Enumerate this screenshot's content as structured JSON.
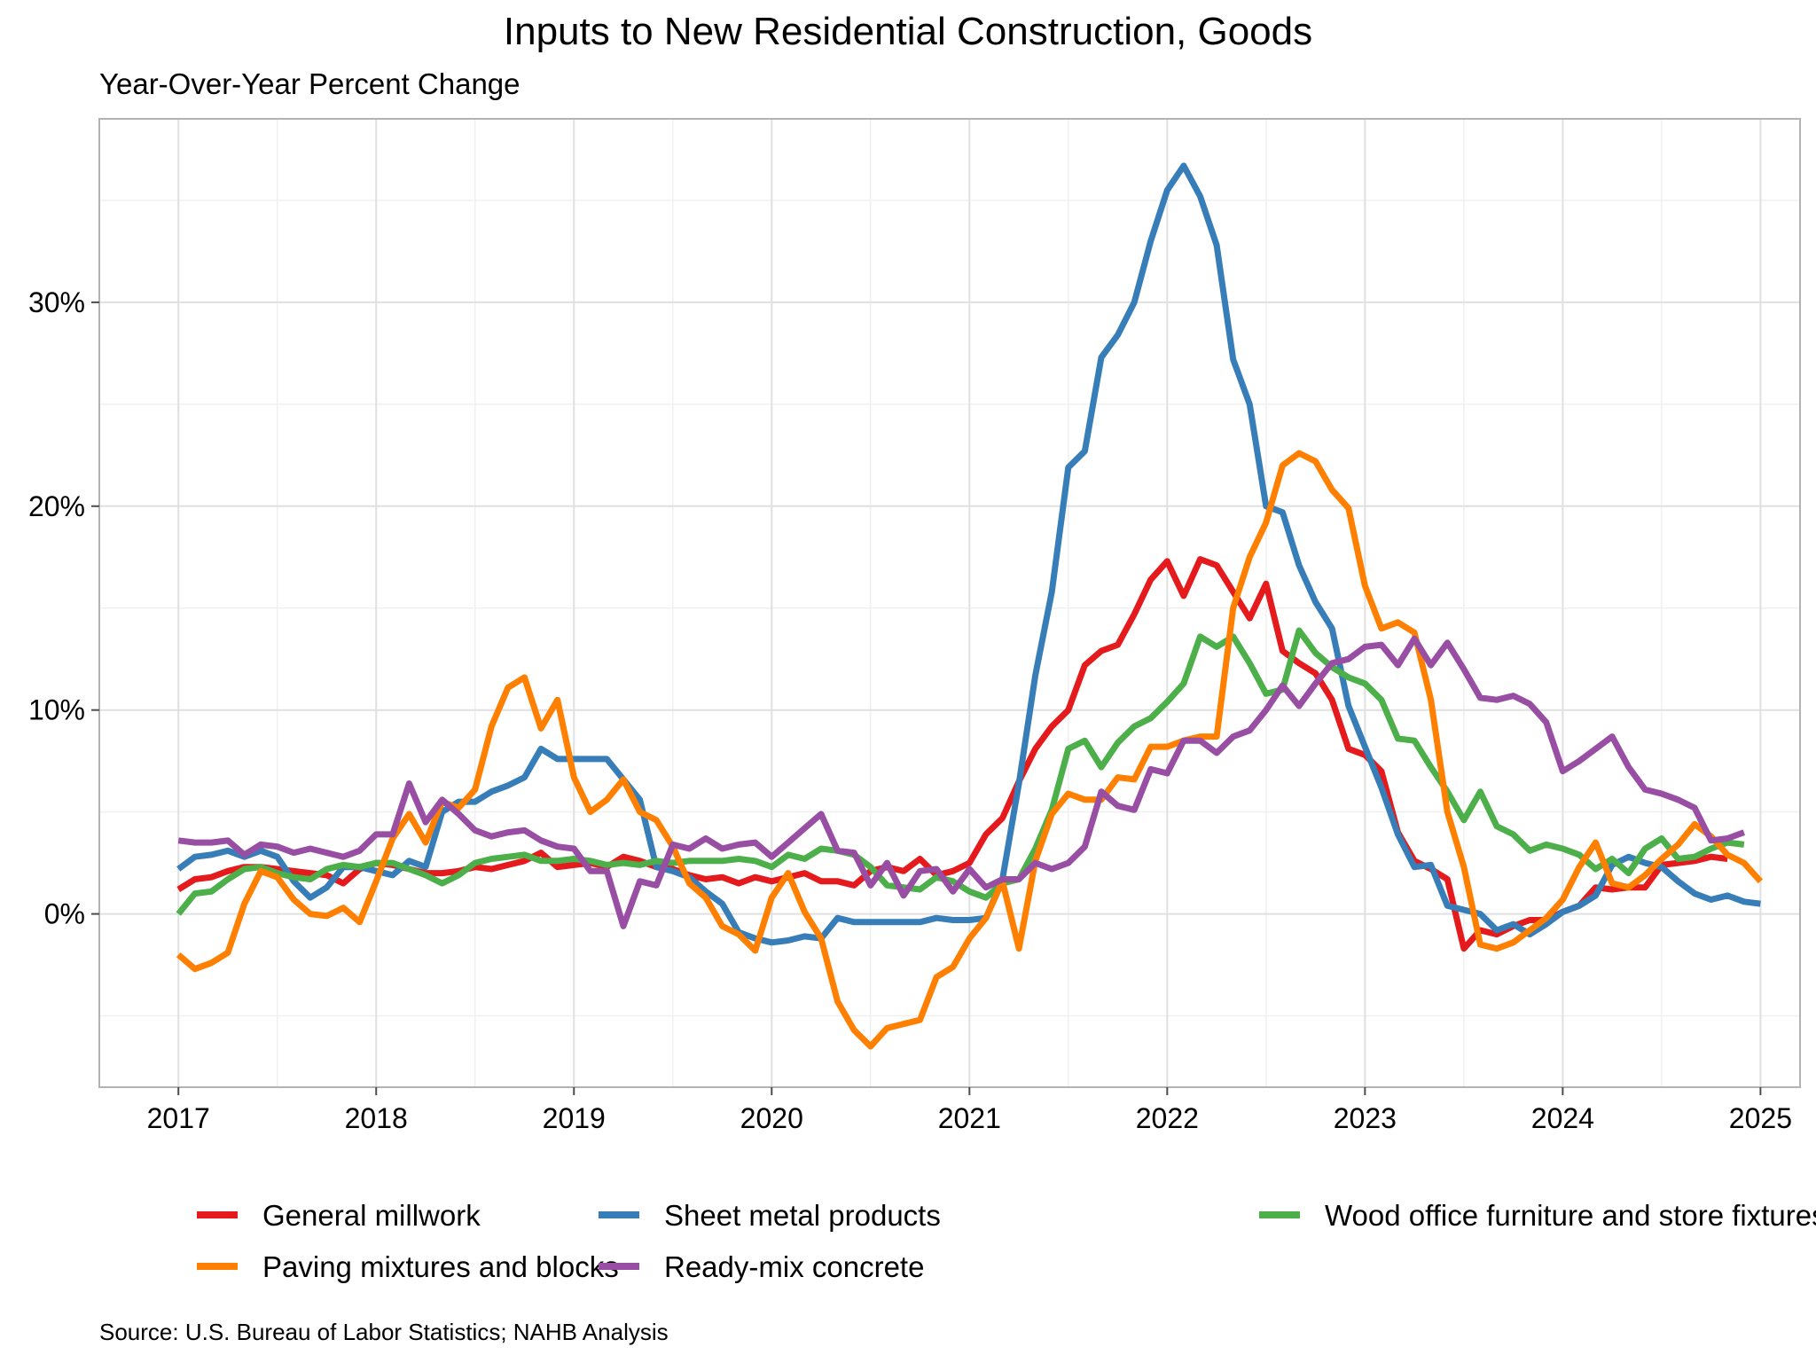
{
  "chart_data": {
    "type": "line",
    "title": "Inputs to New Residential Construction, Goods",
    "subtitle": "Year-Over-Year Percent Change",
    "caption": "Source: U.S. Bureau of Labor Statistics; NAHB Analysis",
    "xlim": [
      2016.6,
      2025.2
    ],
    "ylim": [
      -8.5,
      39
    ],
    "x_ticks": [
      2017,
      2018,
      2019,
      2020,
      2021,
      2022,
      2023,
      2024,
      2025
    ],
    "x_tick_labels": [
      "2017",
      "2018",
      "2019",
      "2020",
      "2021",
      "2022",
      "2023",
      "2024",
      "2025"
    ],
    "y_ticks": [
      0,
      10,
      20,
      30
    ],
    "y_tick_labels": [
      "0%",
      "10%",
      "20%",
      "30%"
    ],
    "y_minor_ticks": [
      -5,
      5,
      15,
      25,
      35
    ],
    "grid": true,
    "legend_position": "bottom",
    "x_start": "2017-01",
    "x_step": "month",
    "series": [
      {
        "name": "General millwork",
        "color": "#e41a1c",
        "values": [
          1.2,
          1.7,
          1.8,
          2.1,
          2.3,
          2.3,
          2.2,
          2.1,
          2.0,
          1.9,
          1.5,
          2.2,
          2.5,
          2.4,
          2.2,
          2.0,
          2.0,
          2.1,
          2.3,
          2.2,
          2.4,
          2.6,
          3.0,
          2.3,
          2.4,
          2.5,
          2.3,
          2.8,
          2.6,
          2.3,
          2.2,
          1.9,
          1.7,
          1.8,
          1.5,
          1.8,
          1.6,
          1.8,
          2.0,
          1.6,
          1.6,
          1.4,
          2.1,
          2.3,
          2.1,
          2.7,
          1.9,
          2.1,
          2.5,
          3.9,
          4.7,
          6.5,
          8.1,
          9.2,
          10.0,
          12.2,
          12.9,
          13.2,
          14.7,
          16.4,
          17.3,
          15.6,
          17.4,
          17.1,
          15.8,
          14.5,
          16.2,
          12.9,
          12.3,
          11.8,
          10.5,
          8.1,
          7.8,
          7.0,
          4.0,
          2.6,
          2.2,
          1.7,
          -1.7,
          -0.8,
          -1.0,
          -0.6,
          -0.3,
          -0.3,
          0.1,
          0.4,
          1.3,
          1.2,
          1.3,
          1.3,
          2.4,
          2.5,
          2.6,
          2.8,
          2.7
        ]
      },
      {
        "name": "Sheet metal products",
        "color": "#377eb8",
        "values": [
          2.2,
          2.8,
          2.9,
          3.1,
          2.8,
          3.1,
          2.8,
          1.6,
          0.8,
          1.3,
          2.3,
          2.3,
          2.1,
          1.9,
          2.6,
          2.3,
          5.0,
          5.5,
          5.5,
          6.0,
          6.3,
          6.7,
          8.1,
          7.6,
          7.6,
          7.6,
          7.6,
          6.6,
          5.6,
          2.3,
          2.1,
          1.8,
          1.1,
          0.5,
          -0.9,
          -1.2,
          -1.4,
          -1.3,
          -1.1,
          -1.2,
          -0.2,
          -0.4,
          -0.4,
          -0.4,
          -0.4,
          -0.4,
          -0.2,
          -0.3,
          -0.3,
          -0.2,
          1.7,
          6.4,
          11.7,
          15.8,
          21.9,
          22.7,
          27.3,
          28.4,
          30.0,
          33.0,
          35.5,
          36.7,
          35.2,
          32.8,
          27.2,
          25.0,
          20.0,
          19.7,
          17.1,
          15.3,
          14.0,
          10.2,
          8.2,
          6.2,
          3.9,
          2.3,
          2.4,
          0.4,
          0.2,
          0.0,
          -0.8,
          -0.5,
          -1.0,
          -0.5,
          0.1,
          0.4,
          0.9,
          2.4,
          2.8,
          2.5,
          2.3,
          1.6,
          1.0,
          0.7,
          0.9,
          0.6,
          0.5
        ]
      },
      {
        "name": "Wood office furniture and store fixtures",
        "color": "#4daf4a",
        "values": [
          0.0,
          1.0,
          1.1,
          1.7,
          2.2,
          2.3,
          2.0,
          1.8,
          1.7,
          2.2,
          2.4,
          2.3,
          2.5,
          2.5,
          2.2,
          1.9,
          1.5,
          1.9,
          2.5,
          2.7,
          2.8,
          2.9,
          2.6,
          2.6,
          2.7,
          2.6,
          2.4,
          2.5,
          2.4,
          2.6,
          2.5,
          2.6,
          2.6,
          2.6,
          2.7,
          2.6,
          2.3,
          2.9,
          2.7,
          3.2,
          3.1,
          2.9,
          2.3,
          1.4,
          1.3,
          1.2,
          1.8,
          1.6,
          1.1,
          0.8,
          1.5,
          1.7,
          3.2,
          5.1,
          8.1,
          8.5,
          7.2,
          8.4,
          9.2,
          9.6,
          10.4,
          11.3,
          13.6,
          13.1,
          13.6,
          12.3,
          10.8,
          11.0,
          13.9,
          12.8,
          12.1,
          11.6,
          11.3,
          10.5,
          8.6,
          8.5,
          7.2,
          6.0,
          4.6,
          6.0,
          4.3,
          3.9,
          3.1,
          3.4,
          3.2,
          2.9,
          2.2,
          2.7,
          2.0,
          3.2,
          3.7,
          2.7,
          2.8,
          3.2,
          3.5,
          3.4
        ]
      },
      {
        "name": "Paving mixtures and blocks",
        "color": "#ff7f00",
        "values": [
          -2.0,
          -2.7,
          -2.4,
          -1.9,
          0.5,
          2.1,
          1.8,
          0.7,
          0.0,
          -0.1,
          0.3,
          -0.4,
          1.6,
          3.7,
          4.9,
          3.5,
          5.5,
          5.2,
          6.1,
          9.2,
          11.1,
          11.6,
          9.1,
          10.5,
          6.7,
          5.0,
          5.6,
          6.6,
          5.0,
          4.6,
          3.3,
          1.5,
          0.8,
          -0.6,
          -1.0,
          -1.8,
          0.8,
          2.0,
          0.1,
          -1.2,
          -4.3,
          -5.7,
          -6.5,
          -5.6,
          -5.4,
          -5.2,
          -3.1,
          -2.6,
          -1.2,
          -0.2,
          1.6,
          -1.7,
          2.6,
          4.9,
          5.9,
          5.6,
          5.6,
          6.7,
          6.6,
          8.2,
          8.2,
          8.5,
          8.7,
          8.7,
          15.0,
          17.5,
          19.2,
          22.0,
          22.6,
          22.2,
          20.8,
          19.9,
          16.1,
          14.0,
          14.3,
          13.8,
          10.5,
          5.0,
          2.3,
          -1.5,
          -1.7,
          -1.4,
          -0.8,
          -0.2,
          0.7,
          2.3,
          3.5,
          1.5,
          1.3,
          1.9,
          2.7,
          3.4,
          4.4,
          3.8,
          2.9,
          2.5,
          1.6
        ]
      },
      {
        "name": "Ready-mix concrete",
        "color": "#984ea3",
        "values": [
          3.6,
          3.5,
          3.5,
          3.6,
          2.9,
          3.4,
          3.3,
          3.0,
          3.2,
          3.0,
          2.8,
          3.1,
          3.9,
          3.9,
          6.4,
          4.5,
          5.6,
          4.9,
          4.1,
          3.8,
          4.0,
          4.1,
          3.6,
          3.3,
          3.2,
          2.1,
          2.1,
          -0.6,
          1.6,
          1.4,
          3.4,
          3.2,
          3.7,
          3.2,
          3.4,
          3.5,
          2.8,
          3.5,
          4.2,
          4.9,
          3.1,
          3.0,
          1.4,
          2.5,
          0.9,
          2.1,
          2.2,
          1.1,
          2.2,
          1.3,
          1.7,
          1.7,
          2.5,
          2.2,
          2.5,
          3.3,
          6.0,
          5.3,
          5.1,
          7.1,
          6.9,
          8.5,
          8.5,
          7.9,
          8.7,
          9.0,
          10.0,
          11.2,
          10.2,
          11.3,
          12.3,
          12.5,
          13.1,
          13.2,
          12.2,
          13.5,
          12.2,
          13.3,
          12.0,
          10.6,
          10.5,
          10.7,
          10.3,
          9.4,
          7.0,
          7.5,
          8.1,
          8.7,
          7.2,
          6.1,
          5.9,
          5.6,
          5.2,
          3.6,
          3.7,
          4.0
        ]
      }
    ]
  }
}
